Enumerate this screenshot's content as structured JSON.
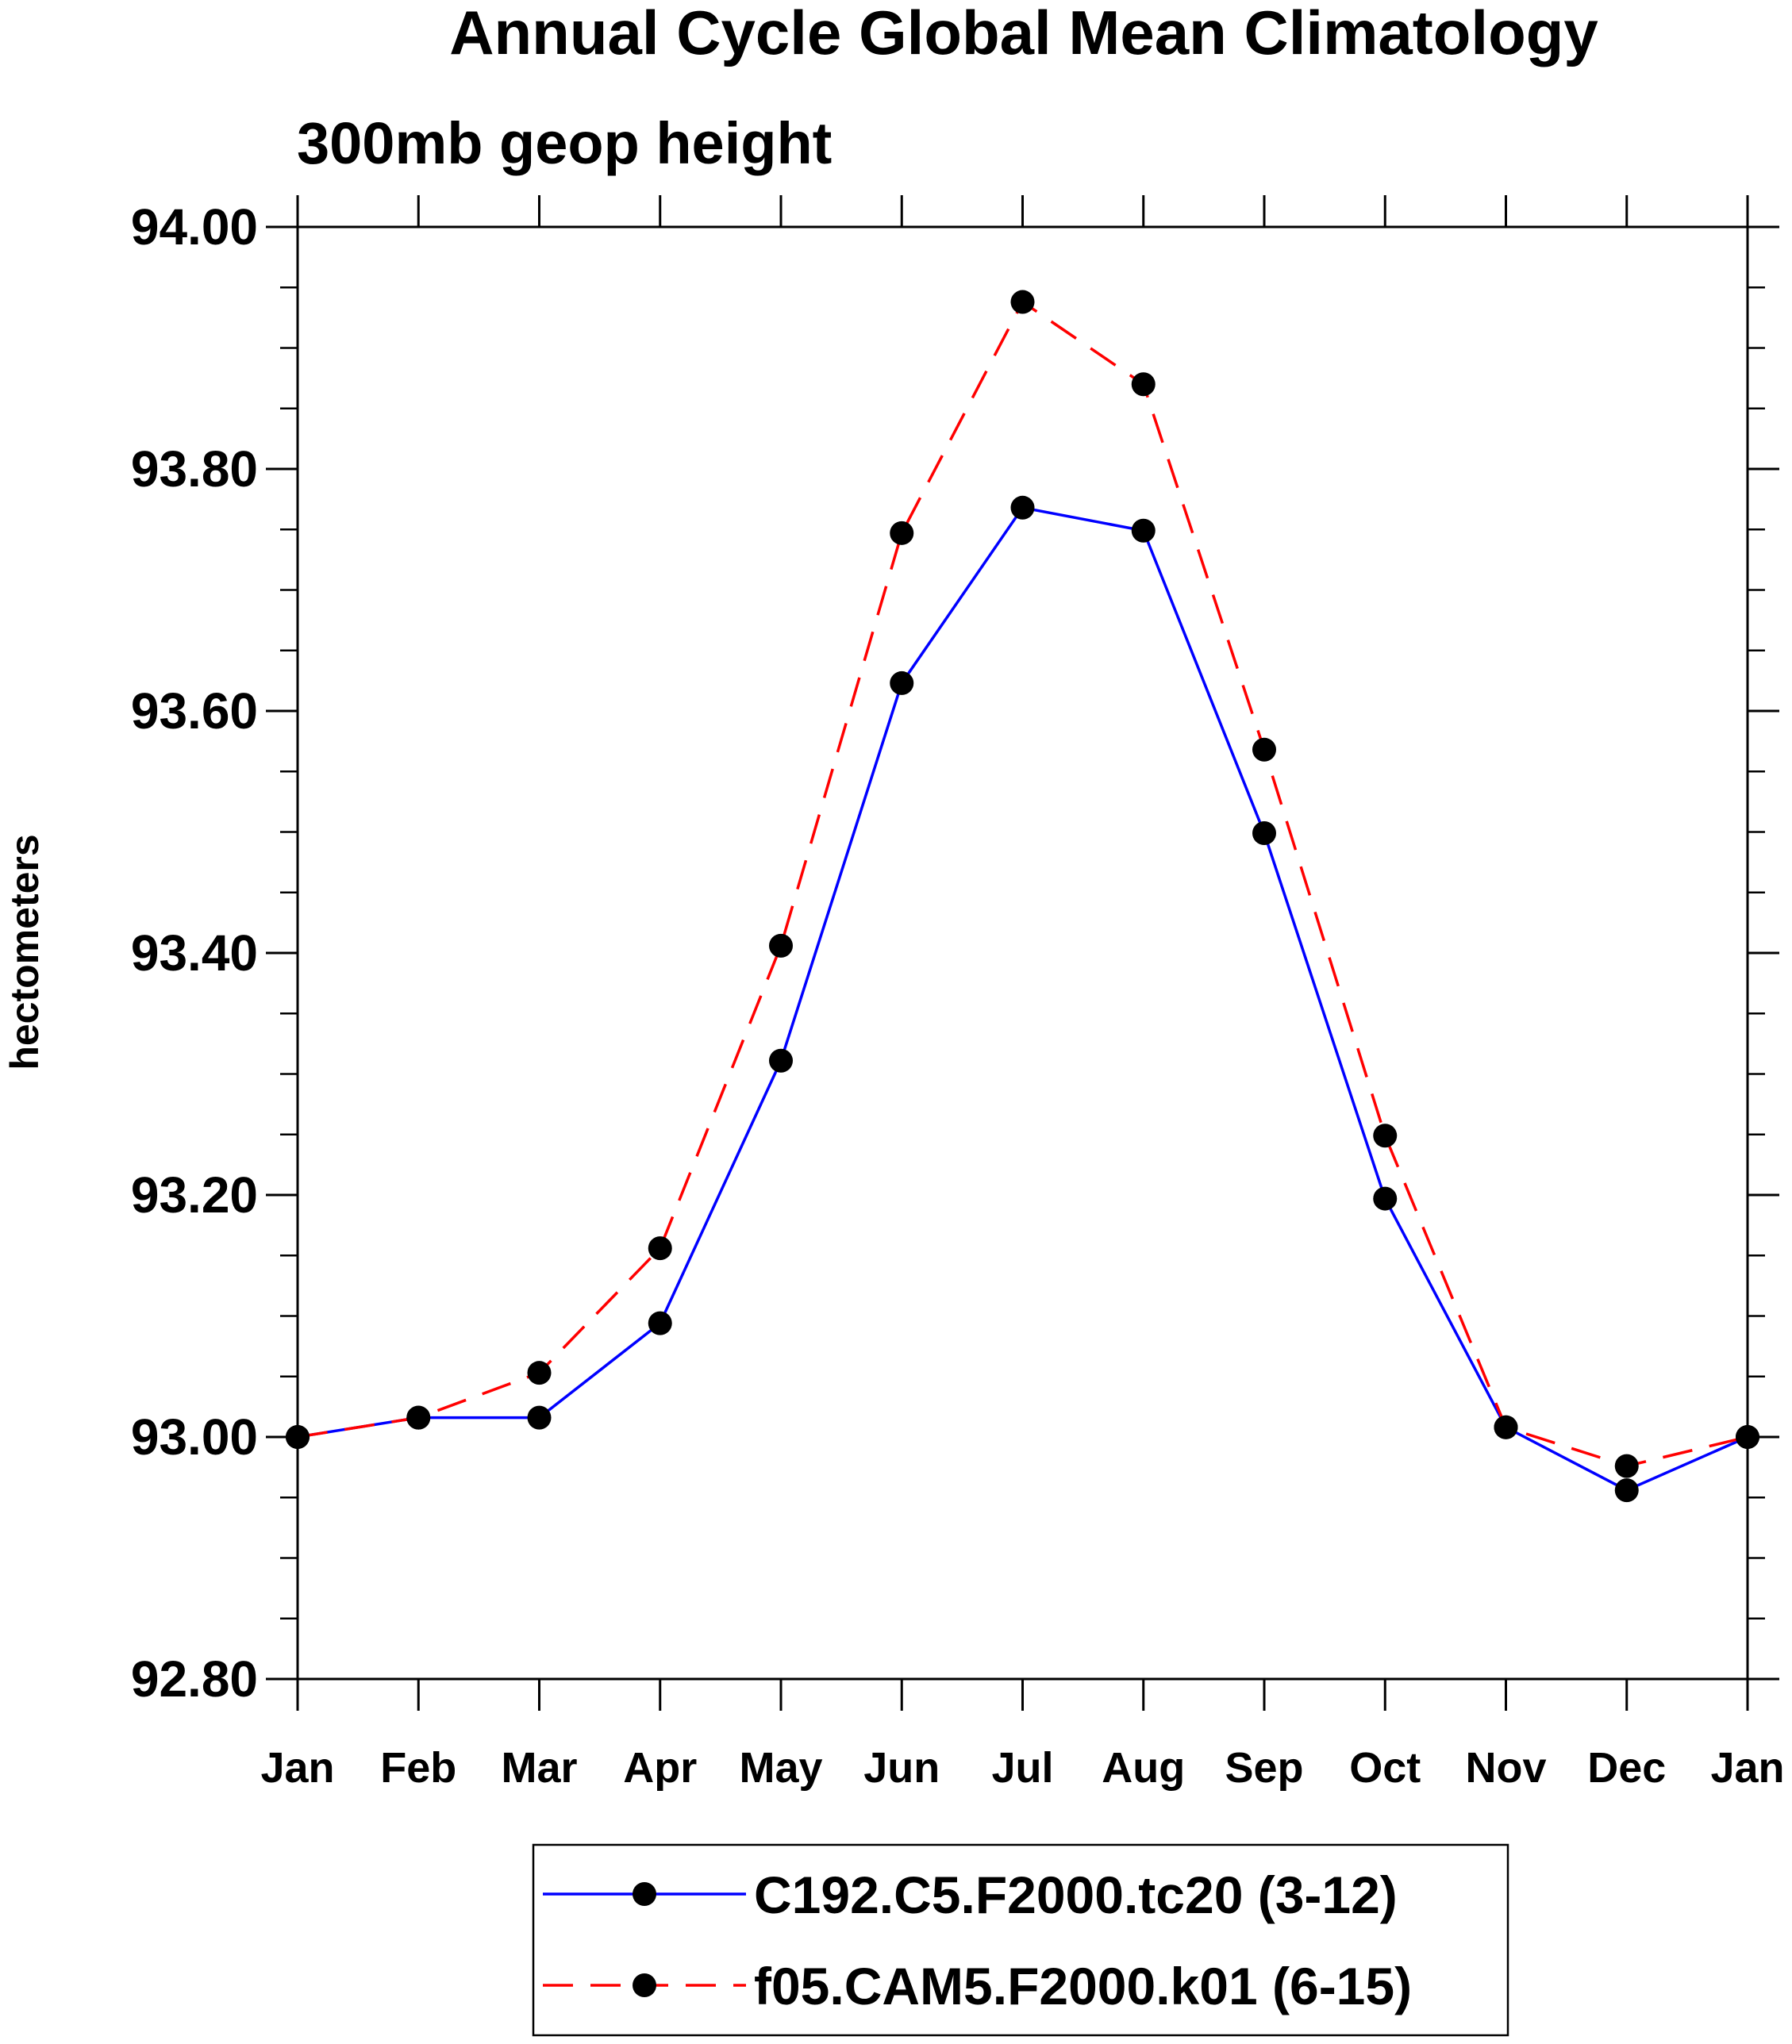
{
  "chart_data": {
    "type": "line",
    "title": "Annual Cycle Global Mean Climatology",
    "subtitle": "300mb geop height",
    "xlabel": "",
    "ylabel": "hectometers",
    "categories": [
      "Jan",
      "Feb",
      "Mar",
      "Apr",
      "May",
      "Jun",
      "Jul",
      "Aug",
      "Sep",
      "Oct",
      "Nov",
      "Dec",
      "Jan"
    ],
    "ylim": [
      92.8,
      94.0
    ],
    "yticks": [
      92.8,
      93.0,
      93.2,
      93.4,
      93.6,
      93.8,
      94.0
    ],
    "ytick_labels": [
      "92.80",
      "93.00",
      "93.20",
      "93.40",
      "93.60",
      "93.80",
      "94.00"
    ],
    "y_minor_step": 0.05,
    "grid": false,
    "legend_position": "bottom-center",
    "series": [
      {
        "name": "C192.C5.F2000.tc20 (3-12)",
        "color": "#0000ff",
        "dash": "solid",
        "marker": "filled-circle",
        "values": [
          93.0,
          93.016,
          93.016,
          93.094,
          93.311,
          93.623,
          93.768,
          93.749,
          93.499,
          93.197,
          93.008,
          92.956,
          93.0
        ]
      },
      {
        "name": "f05.CAM5.F2000.k01 (6-15)",
        "color": "#ff0000",
        "dash": "dashed",
        "marker": "filled-circle",
        "values": [
          93.0,
          93.016,
          93.053,
          93.156,
          93.406,
          93.747,
          93.938,
          93.87,
          93.568,
          93.249,
          93.008,
          92.976,
          93.0
        ]
      }
    ]
  }
}
